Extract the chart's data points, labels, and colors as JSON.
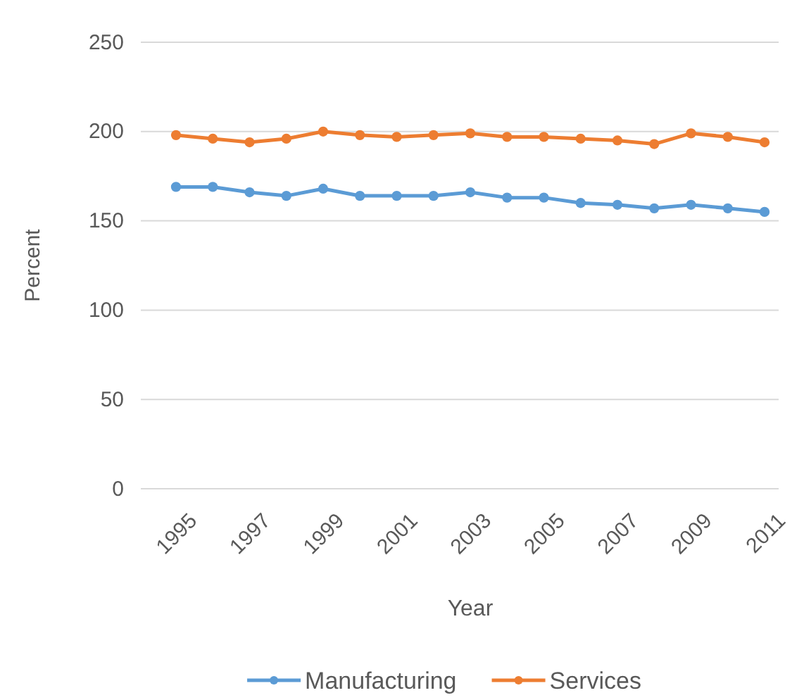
{
  "chart_data": {
    "type": "line",
    "xlabel": "Year",
    "ylabel": "Percent",
    "categories": [
      "1995",
      null,
      "1997",
      null,
      "1999",
      null,
      "2001",
      null,
      "2003",
      null,
      "2005",
      null,
      "2007",
      null,
      "2009",
      null,
      "2011"
    ],
    "series": [
      {
        "name": "Manufacturing",
        "color": "#5b9bd5",
        "values": [
          169,
          169,
          166,
          164,
          168,
          164,
          164,
          164,
          166,
          163,
          163,
          160,
          159,
          157,
          159,
          157,
          155
        ]
      },
      {
        "name": "Services",
        "color": "#ed7d31",
        "values": [
          198,
          196,
          194,
          196,
          200,
          198,
          197,
          198,
          199,
          197,
          197,
          196,
          195,
          193,
          199,
          197,
          194
        ]
      }
    ],
    "ylim": [
      0,
      250
    ],
    "yticks": [
      0,
      50,
      100,
      150,
      200,
      250
    ],
    "grid": "y",
    "legend": "bottom",
    "marker": "circle",
    "line_style": "solid"
  }
}
